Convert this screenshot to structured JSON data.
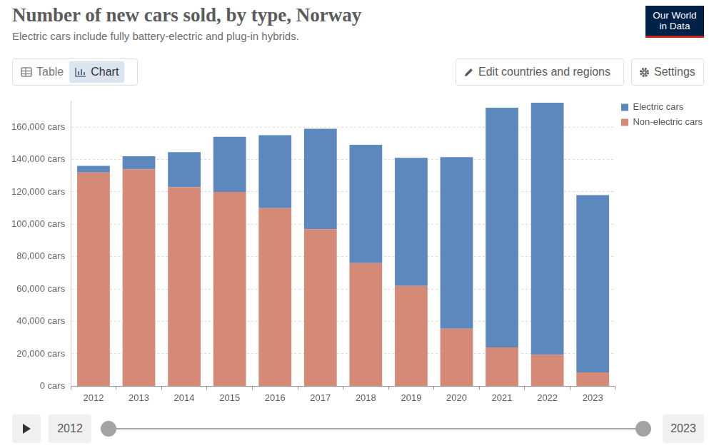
{
  "header": {
    "title": "Number of new cars sold, by type, Norway",
    "subtitle": "Electric cars include fully battery-electric and plug-in hybrids.",
    "logo": [
      "Our World",
      "in Data"
    ]
  },
  "controls": {
    "tabs": [
      "Table",
      "Chart"
    ],
    "selected_tab": "Chart",
    "edit_button": "Edit countries and regions",
    "settings_button": "Settings"
  },
  "timeline": {
    "start": "2012",
    "end": "2023"
  },
  "chart_data": {
    "type": "bar",
    "stacked": true,
    "grid": true,
    "legend": "top-right",
    "categories": [
      "2012",
      "2013",
      "2014",
      "2015",
      "2016",
      "2017",
      "2018",
      "2019",
      "2020",
      "2021",
      "2022",
      "2023"
    ],
    "series": [
      {
        "name": "Electric cars",
        "color": "#5c88be",
        "values": [
          4000,
          8000,
          21500,
          34000,
          45000,
          62000,
          73000,
          79000,
          106000,
          148000,
          155500,
          109500
        ]
      },
      {
        "name": "Non-electric cars",
        "color": "#d48a77",
        "values": [
          132000,
          134000,
          123000,
          120000,
          110000,
          97000,
          76000,
          62000,
          35500,
          24000,
          19500,
          8500
        ]
      }
    ],
    "ylim": [
      0,
      176000
    ],
    "yticks": [
      {
        "value": 0,
        "label": "0 cars"
      },
      {
        "value": 20000,
        "label": "20,000 cars"
      },
      {
        "value": 40000,
        "label": "40,000 cars"
      },
      {
        "value": 60000,
        "label": "60,000 cars"
      },
      {
        "value": 80000,
        "label": "80,000 cars"
      },
      {
        "value": 100000,
        "label": "100,000 cars"
      },
      {
        "value": 120000,
        "label": "120,000 cars"
      },
      {
        "value": 140000,
        "label": "140,000 cars"
      },
      {
        "value": 160000,
        "label": "160,000 cars"
      }
    ]
  }
}
